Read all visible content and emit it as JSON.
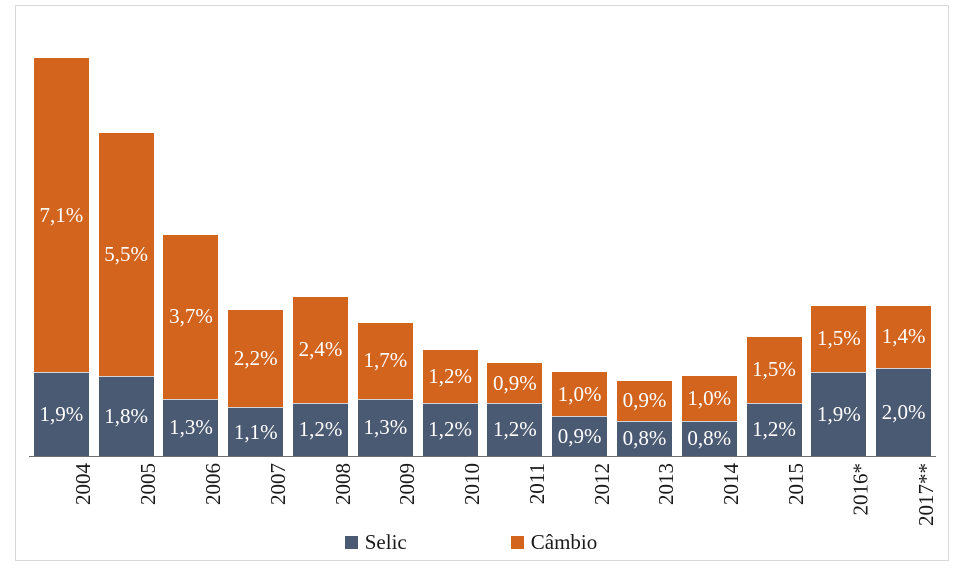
{
  "chart": {
    "background_color": "#ffffff",
    "frame_border_color": "#d9d9d9",
    "axis_line_color": "#6e6e6e",
    "value_label_color": "#ffffff"
  },
  "chart_data": {
    "type": "bar",
    "stacked": true,
    "title": "",
    "xlabel": "",
    "ylabel": "",
    "unit": "percent",
    "decimal_style": "comma (pt-BR)",
    "categories": [
      "2004",
      "2005",
      "2006",
      "2007",
      "2008",
      "2009",
      "2010",
      "2011",
      "2012",
      "2013",
      "2014",
      "2015",
      "2016*",
      "2017**"
    ],
    "series": [
      {
        "name": "Selic",
        "color": "#4b5a73",
        "values": [
          1.9,
          1.8,
          1.3,
          1.1,
          1.2,
          1.3,
          1.2,
          1.2,
          0.9,
          0.8,
          0.8,
          1.2,
          1.9,
          2.0
        ],
        "labels": [
          "1,9%",
          "1,8%",
          "1,3%",
          "1,1%",
          "1,2%",
          "1,3%",
          "1,2%",
          "1,2%",
          "0,9%",
          "0,8%",
          "0,8%",
          "1,2%",
          "1,9%",
          "2,0%"
        ]
      },
      {
        "name": "Câmbio",
        "color": "#d2641e",
        "values": [
          7.1,
          5.5,
          3.7,
          2.2,
          2.4,
          1.7,
          1.2,
          0.9,
          1.0,
          0.9,
          1.0,
          1.5,
          1.5,
          1.4
        ],
        "labels": [
          "7,1%",
          "5,5%",
          "3,7%",
          "2,2%",
          "2,4%",
          "1,7%",
          "1,2%",
          "0,9%",
          "1,0%",
          "0,9%",
          "1,0%",
          "1,5%",
          "1,5%",
          "1,4%"
        ]
      }
    ],
    "totals": [
      9.0,
      7.3,
      5.0,
      3.3,
      3.6,
      3.0,
      2.4,
      2.1,
      1.9,
      1.7,
      1.8,
      2.7,
      3.4,
      3.4
    ],
    "y_axis": {
      "visible": false,
      "implied_range": [
        0,
        10
      ]
    },
    "x_axis": {
      "tick_rotation_degrees": 90,
      "gridlines": false
    },
    "legend": {
      "position": "bottom-center",
      "items": [
        {
          "label": "Selic",
          "color": "#4b5a73"
        },
        {
          "label": "Câmbio",
          "color": "#d2641e"
        }
      ]
    }
  }
}
